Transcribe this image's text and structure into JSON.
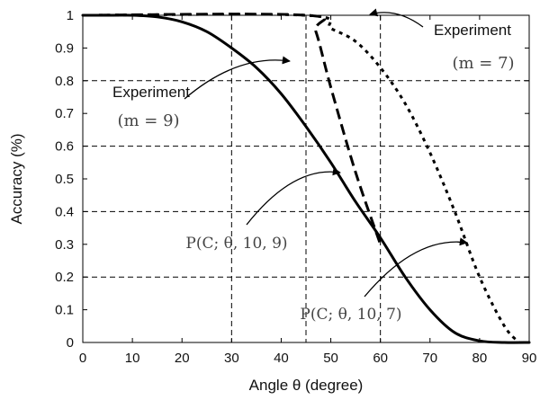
{
  "chart_data": {
    "type": "line",
    "title": "",
    "xlabel": "Angle θ (degree)",
    "ylabel": "Accuracy (%)",
    "xlim": [
      0,
      90
    ],
    "ylim": [
      0,
      1
    ],
    "x_ticks": [
      0,
      10,
      20,
      30,
      40,
      50,
      60,
      70,
      80,
      90
    ],
    "y_ticks": [
      0,
      0.1,
      0.2,
      0.3,
      0.4,
      0.5,
      0.6,
      0.7,
      0.8,
      0.9,
      1
    ],
    "y_tick_labels": [
      "0",
      "0.1",
      "0.2",
      "0.3",
      "0.4",
      "0.5",
      "0.6",
      "0.7",
      "0.8",
      "0.9",
      "1"
    ],
    "grid": false,
    "reference_lines": {
      "vertical": [
        30,
        45,
        60
      ],
      "horizontal": [
        0.2,
        0.4,
        0.6,
        0.8
      ],
      "style": "dashed"
    },
    "series": [
      {
        "style": "solid",
        "x": [
          0,
          5,
          10,
          15,
          20,
          25,
          30,
          35,
          40,
          45,
          50,
          55,
          60,
          65,
          70,
          75,
          80,
          85,
          90
        ],
        "y": [
          1,
          1,
          1,
          0.995,
          0.98,
          0.95,
          0.9,
          0.84,
          0.76,
          0.66,
          0.55,
          0.43,
          0.32,
          0.2,
          0.1,
          0.03,
          0.005,
          0,
          0
        ]
      },
      {
        "style": "dashed",
        "x": [
          0,
          45,
          47,
          50,
          55,
          60
        ],
        "y": [
          1,
          1,
          0.95,
          0.78,
          0.52,
          0.3
        ]
      },
      {
        "style": "dotted",
        "x": [
          0,
          45,
          50,
          55,
          60,
          65,
          70,
          75,
          80,
          85,
          88
        ],
        "y": [
          1,
          1,
          0.96,
          0.92,
          0.84,
          0.73,
          0.58,
          0.4,
          0.2,
          0.05,
          0
        ]
      }
    ],
    "annotations": [
      {
        "text": "Experiment",
        "sub": "(m = 7)"
      },
      {
        "text": "Experiment",
        "sub": "(m = 9)"
      },
      {
        "text": "P(C; θ, 10, 9)"
      },
      {
        "text": "P(C; θ, 10, 7)"
      }
    ]
  }
}
